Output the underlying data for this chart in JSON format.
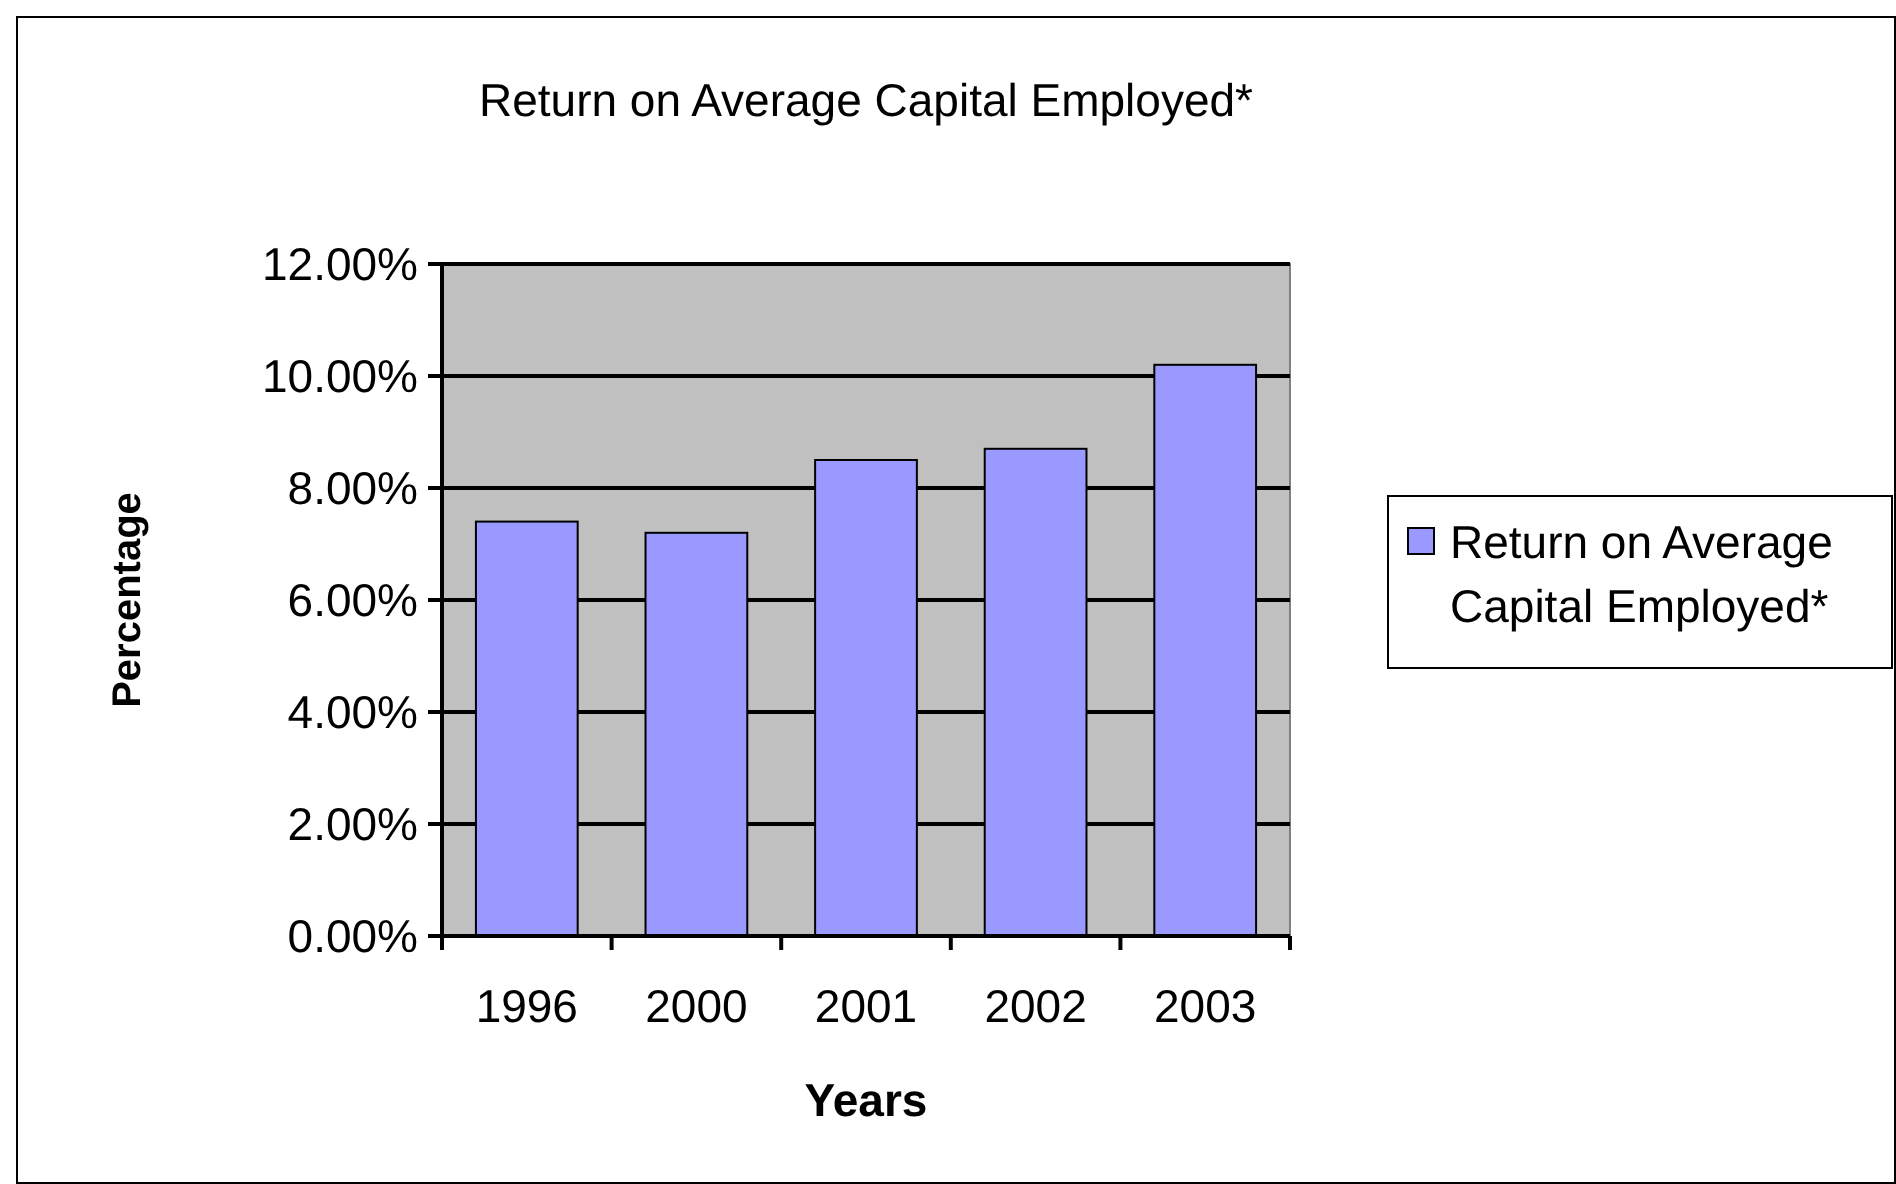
{
  "chart_data": {
    "type": "bar",
    "title": "Return on Average Capital Employed*",
    "xlabel": "Years",
    "ylabel": "Percentage",
    "categories": [
      "1996",
      "2000",
      "2001",
      "2002",
      "2003"
    ],
    "series": [
      {
        "name": "Return on Average Capital Employed*",
        "color": "#9999ff",
        "values": [
          7.4,
          7.2,
          8.5,
          8.7,
          10.2
        ]
      }
    ],
    "ylim": [
      0,
      12
    ],
    "yticks": [
      {
        "value": 0,
        "label": "0.00%"
      },
      {
        "value": 2,
        "label": "2.00%"
      },
      {
        "value": 4,
        "label": "4.00%"
      },
      {
        "value": 6,
        "label": "6.00%"
      },
      {
        "value": 8,
        "label": "8.00%"
      },
      {
        "value": 10,
        "label": "10.00%"
      },
      {
        "value": 12,
        "label": "12.00%"
      }
    ],
    "grid": "y",
    "legend": "right"
  }
}
